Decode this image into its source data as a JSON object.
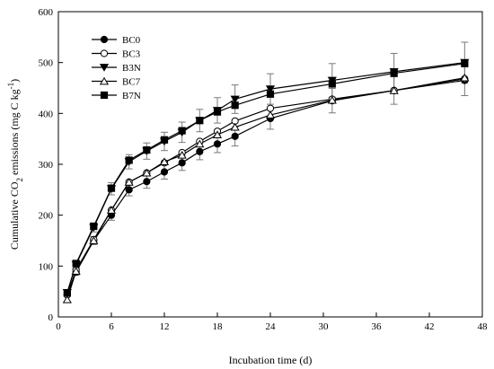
{
  "chart_data": {
    "type": "line",
    "xlabel": "Incubation time (d)",
    "ylabel_parts": {
      "a": "Cumulative CO",
      "sub": "2",
      "b": " emissions (mg C kg",
      "sup": "-1",
      "c": ")"
    },
    "xlim": [
      0,
      48
    ],
    "ylim": [
      0,
      600
    ],
    "xticks": [
      0,
      6,
      12,
      18,
      24,
      30,
      36,
      42,
      48
    ],
    "yticks": [
      0,
      100,
      200,
      300,
      400,
      500,
      600
    ],
    "grid": false,
    "legend_position": "top-left",
    "x": [
      1,
      2,
      4,
      6,
      8,
      10,
      12,
      14,
      16,
      18,
      20,
      24,
      31,
      38,
      46
    ],
    "series": [
      {
        "name": "BC0",
        "marker": "filled-circle",
        "values": [
          45,
          88,
          150,
          200,
          250,
          266,
          285,
          303,
          325,
          340,
          355,
          390,
          425,
          445,
          465
        ],
        "errors": [
          4,
          6,
          8,
          10,
          12,
          13,
          14,
          15,
          16,
          17,
          19,
          21,
          24,
          27,
          30
        ]
      },
      {
        "name": "BC3",
        "marker": "open-circle",
        "values": [
          43,
          92,
          152,
          210,
          265,
          283,
          303,
          323,
          345,
          365,
          385,
          410,
          428,
          445,
          468
        ]
      },
      {
        "name": "B3N",
        "marker": "filled-triangle-down",
        "values": [
          48,
          103,
          176,
          252,
          305,
          326,
          345,
          363,
          386,
          406,
          428,
          448,
          465,
          482,
          500
        ],
        "errors": [
          4,
          7,
          9,
          12,
          14,
          16,
          18,
          20,
          22,
          25,
          28,
          30,
          33,
          36,
          40
        ]
      },
      {
        "name": "BC7",
        "marker": "open-triangle-up",
        "values": [
          34,
          90,
          150,
          210,
          265,
          283,
          305,
          318,
          340,
          358,
          373,
          397,
          426,
          445,
          470
        ]
      },
      {
        "name": "B7N",
        "marker": "filled-square",
        "values": [
          47,
          105,
          178,
          253,
          308,
          328,
          348,
          366,
          386,
          403,
          416,
          438,
          458,
          479,
          498
        ]
      }
    ]
  }
}
